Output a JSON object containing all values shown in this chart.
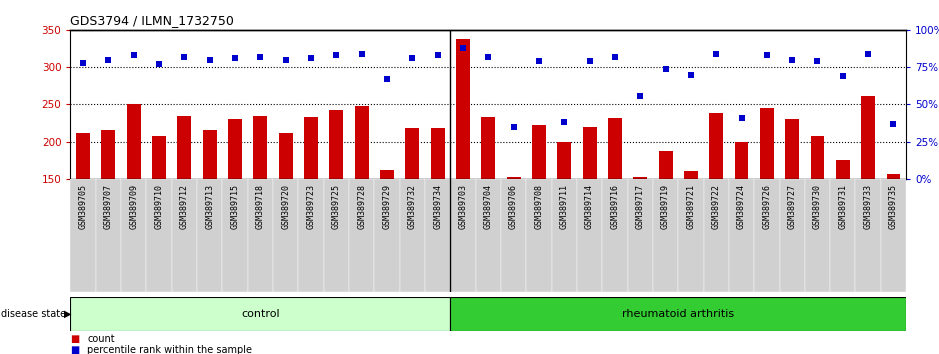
{
  "title": "GDS3794 / ILMN_1732750",
  "samples": [
    "GSM389705",
    "GSM389707",
    "GSM389709",
    "GSM389710",
    "GSM389712",
    "GSM389713",
    "GSM389715",
    "GSM389718",
    "GSM389720",
    "GSM389723",
    "GSM389725",
    "GSM389728",
    "GSM389729",
    "GSM389732",
    "GSM389734",
    "GSM389703",
    "GSM389704",
    "GSM389706",
    "GSM389708",
    "GSM389711",
    "GSM389714",
    "GSM389716",
    "GSM389717",
    "GSM389719",
    "GSM389721",
    "GSM389722",
    "GSM389724",
    "GSM389726",
    "GSM389727",
    "GSM389730",
    "GSM389731",
    "GSM389733",
    "GSM389735"
  ],
  "counts": [
    212,
    216,
    250,
    208,
    235,
    215,
    230,
    235,
    212,
    233,
    242,
    248,
    162,
    218,
    218,
    338,
    233,
    153,
    222,
    200,
    219,
    232,
    153,
    188,
    160,
    238,
    199,
    245,
    230,
    208,
    175,
    261,
    157
  ],
  "percentile_ranks": [
    78,
    80,
    83,
    77,
    82,
    80,
    81,
    82,
    80,
    81,
    83,
    84,
    67,
    81,
    83,
    88,
    82,
    35,
    79,
    38,
    79,
    82,
    56,
    74,
    70,
    84,
    41,
    83,
    80,
    79,
    69,
    84,
    37
  ],
  "n_control": 15,
  "ylim_left": [
    150,
    350
  ],
  "ylim_right": [
    0,
    100
  ],
  "yticks_left": [
    150,
    200,
    250,
    300,
    350
  ],
  "yticks_right": [
    0,
    25,
    50,
    75,
    100
  ],
  "bar_color": "#cc0000",
  "dot_color": "#0000cc",
  "control_color": "#ccffcc",
  "ra_color": "#33cc33",
  "label_bg_color": "#d0d0d0",
  "figsize": [
    9.39,
    3.54
  ],
  "dpi": 100
}
